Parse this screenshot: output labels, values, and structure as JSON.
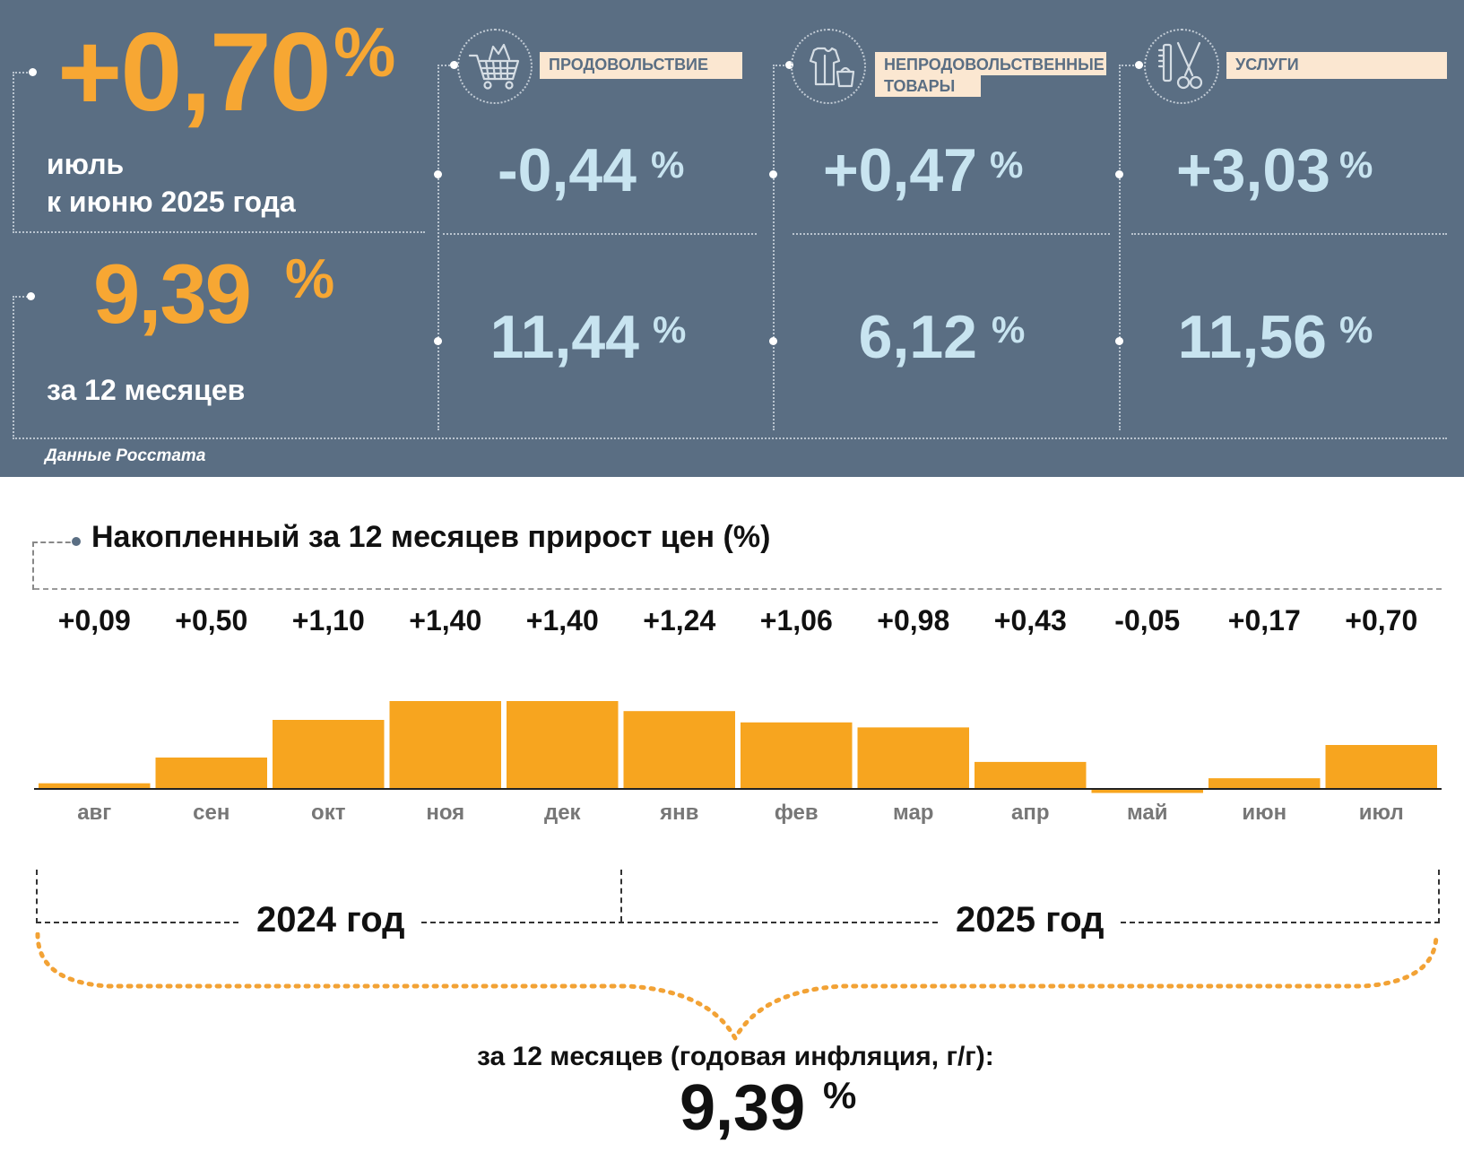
{
  "header": {
    "monthly": {
      "value": "+0,70",
      "unit": "%",
      "label_line1": "июль",
      "label_line2": "к июню 2025 года"
    },
    "annual": {
      "value": "9,39",
      "unit": "%",
      "label": "за 12 месяцев"
    },
    "source": "Данные Росстата"
  },
  "categories": [
    {
      "name": "ПРОДОВОЛЬСТВИЕ",
      "icon": "shopping-cart-icon",
      "monthly": "-0,44",
      "annual": "11,44",
      "unit": "%"
    },
    {
      "name": "НЕПРОДОВОЛЬСТВЕННЫЕ ТОВАРЫ",
      "name_line1": "НЕПРОДОВОЛЬСТВЕННЫЕ",
      "name_line2": "ТОВАРЫ",
      "icon": "clothing-bag-icon",
      "monthly": "+0,47",
      "annual": "6,12",
      "unit": "%"
    },
    {
      "name": "УСЛУГИ",
      "icon": "scissors-comb-icon",
      "monthly": "+3,03",
      "annual": "11,56",
      "unit": "%"
    }
  ],
  "colors": {
    "panel": "#5a6e83",
    "accent": "#f7a733",
    "value_blue": "#c8e4f0",
    "label_box": "#fbe7d1",
    "bar": "#f7a51f"
  },
  "chart_data": {
    "type": "bar",
    "title": "Накопленный за 12 месяцев прирост цен (%)",
    "categories": [
      "авг",
      "сен",
      "окт",
      "ноя",
      "дек",
      "янв",
      "фев",
      "мар",
      "апр",
      "май",
      "июн",
      "июл"
    ],
    "values": [
      0.09,
      0.5,
      1.1,
      1.4,
      1.4,
      1.24,
      1.06,
      0.98,
      0.43,
      -0.05,
      0.17,
      0.7
    ],
    "value_labels": [
      "+0,09",
      "+0,50",
      "+1,10",
      "+1,40",
      "+1,40",
      "+1,24",
      "+1,06",
      "+0,98",
      "+0,43",
      "-0,05",
      "+0,17",
      "+0,70"
    ],
    "year_groups": [
      {
        "label": "2024 год",
        "months": 5
      },
      {
        "label": "2025 год",
        "months": 7
      }
    ],
    "summary_label": "за 12 месяцев (годовая инфляция, г/г):",
    "summary_value": "9,39",
    "summary_unit": "%"
  }
}
